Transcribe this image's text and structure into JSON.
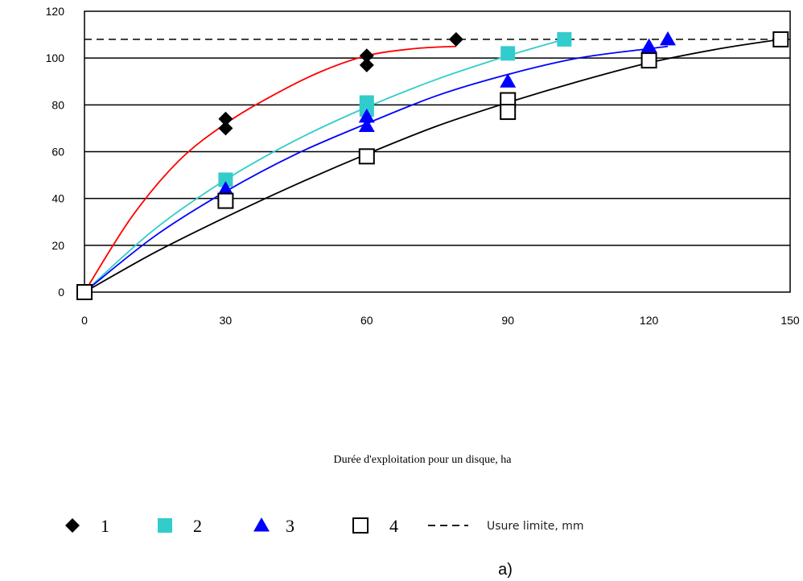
{
  "chart_data": {
    "type": "scatter",
    "xlabel": "Durée d'exploitation pour un disque, ha",
    "ylabel": "",
    "xlim": [
      0,
      150
    ],
    "ylim": [
      0,
      120
    ],
    "xticks": [
      0,
      30,
      60,
      90,
      120,
      150
    ],
    "yticks": [
      0,
      20,
      40,
      60,
      80,
      100,
      120
    ],
    "grid": "horizontal",
    "legend_placement": "bottom",
    "reference_line": {
      "label": "Usure limite, mm",
      "y": 108,
      "style": "dashed",
      "color": "#000000"
    },
    "panel_label": "a)",
    "series": [
      {
        "name": "1",
        "marker": "diamond",
        "color": "#000000",
        "points": [
          [
            0,
            0
          ],
          [
            30,
            74
          ],
          [
            30,
            70
          ],
          [
            60,
            101
          ],
          [
            60,
            97
          ],
          [
            79,
            108
          ]
        ],
        "curve_color": "#ff0000",
        "curve": [
          [
            0,
            0
          ],
          [
            10,
            32
          ],
          [
            20,
            56
          ],
          [
            30,
            72
          ],
          [
            40,
            84
          ],
          [
            50,
            94
          ],
          [
            60,
            101
          ],
          [
            70,
            104
          ],
          [
            79,
            105
          ]
        ]
      },
      {
        "name": "2",
        "marker": "square-filled",
        "color": "#33cccc",
        "points": [
          [
            0,
            0
          ],
          [
            30,
            48
          ],
          [
            60,
            81
          ],
          [
            60,
            78
          ],
          [
            90,
            102
          ],
          [
            102,
            108
          ]
        ],
        "curve_color": "#33cccc",
        "curve": [
          [
            0,
            0
          ],
          [
            15,
            27
          ],
          [
            30,
            48
          ],
          [
            45,
            65
          ],
          [
            60,
            79
          ],
          [
            75,
            91
          ],
          [
            90,
            101
          ],
          [
            102,
            108
          ]
        ]
      },
      {
        "name": "3",
        "marker": "triangle",
        "color": "#0000ff",
        "points": [
          [
            0,
            0
          ],
          [
            30,
            44
          ],
          [
            60,
            75
          ],
          [
            60,
            71
          ],
          [
            90,
            90
          ],
          [
            120,
            105
          ],
          [
            124,
            108
          ]
        ],
        "curve_color": "#0000ff",
        "curve": [
          [
            0,
            0
          ],
          [
            15,
            24
          ],
          [
            30,
            43
          ],
          [
            45,
            59
          ],
          [
            60,
            72
          ],
          [
            75,
            84
          ],
          [
            90,
            93
          ],
          [
            105,
            100
          ],
          [
            120,
            104
          ],
          [
            124,
            105
          ]
        ]
      },
      {
        "name": "4",
        "marker": "square-open",
        "color": "#000000",
        "points": [
          [
            0,
            0
          ],
          [
            30,
            39
          ],
          [
            60,
            58
          ],
          [
            90,
            82
          ],
          [
            90,
            77
          ],
          [
            120,
            99
          ],
          [
            148,
            108
          ]
        ],
        "curve_color": "#000000",
        "curve": [
          [
            0,
            0
          ],
          [
            15,
            17
          ],
          [
            30,
            32
          ],
          [
            45,
            46
          ],
          [
            60,
            59
          ],
          [
            75,
            71
          ],
          [
            90,
            81
          ],
          [
            105,
            90
          ],
          [
            120,
            98
          ],
          [
            135,
            104
          ],
          [
            148,
            108
          ]
        ]
      }
    ]
  }
}
